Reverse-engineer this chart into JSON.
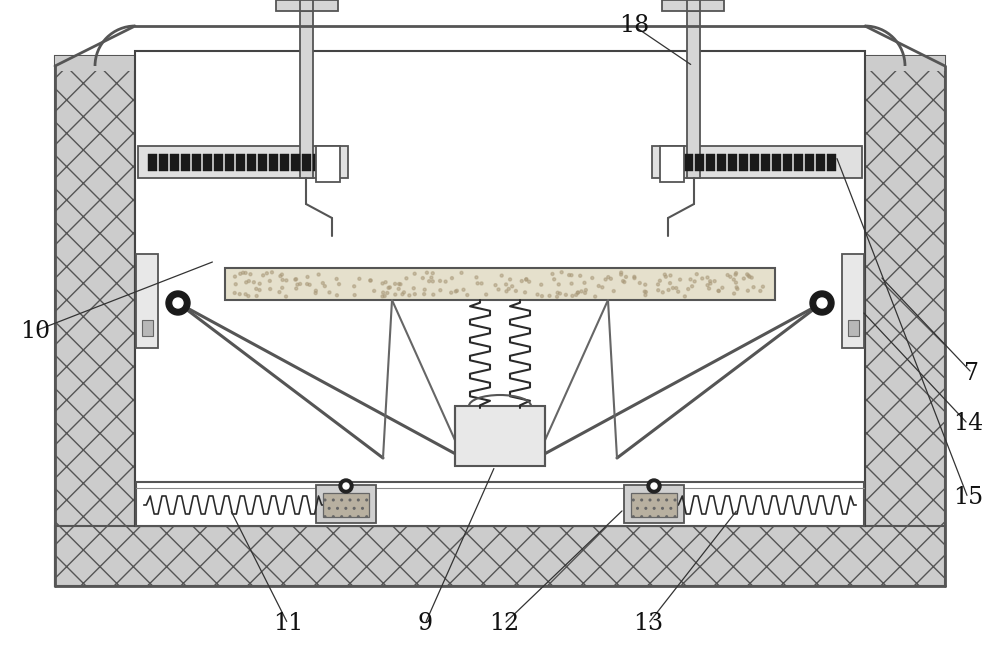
{
  "bg_color": "#ffffff",
  "line_color": "#333333",
  "fig_width": 10.0,
  "fig_height": 6.66
}
